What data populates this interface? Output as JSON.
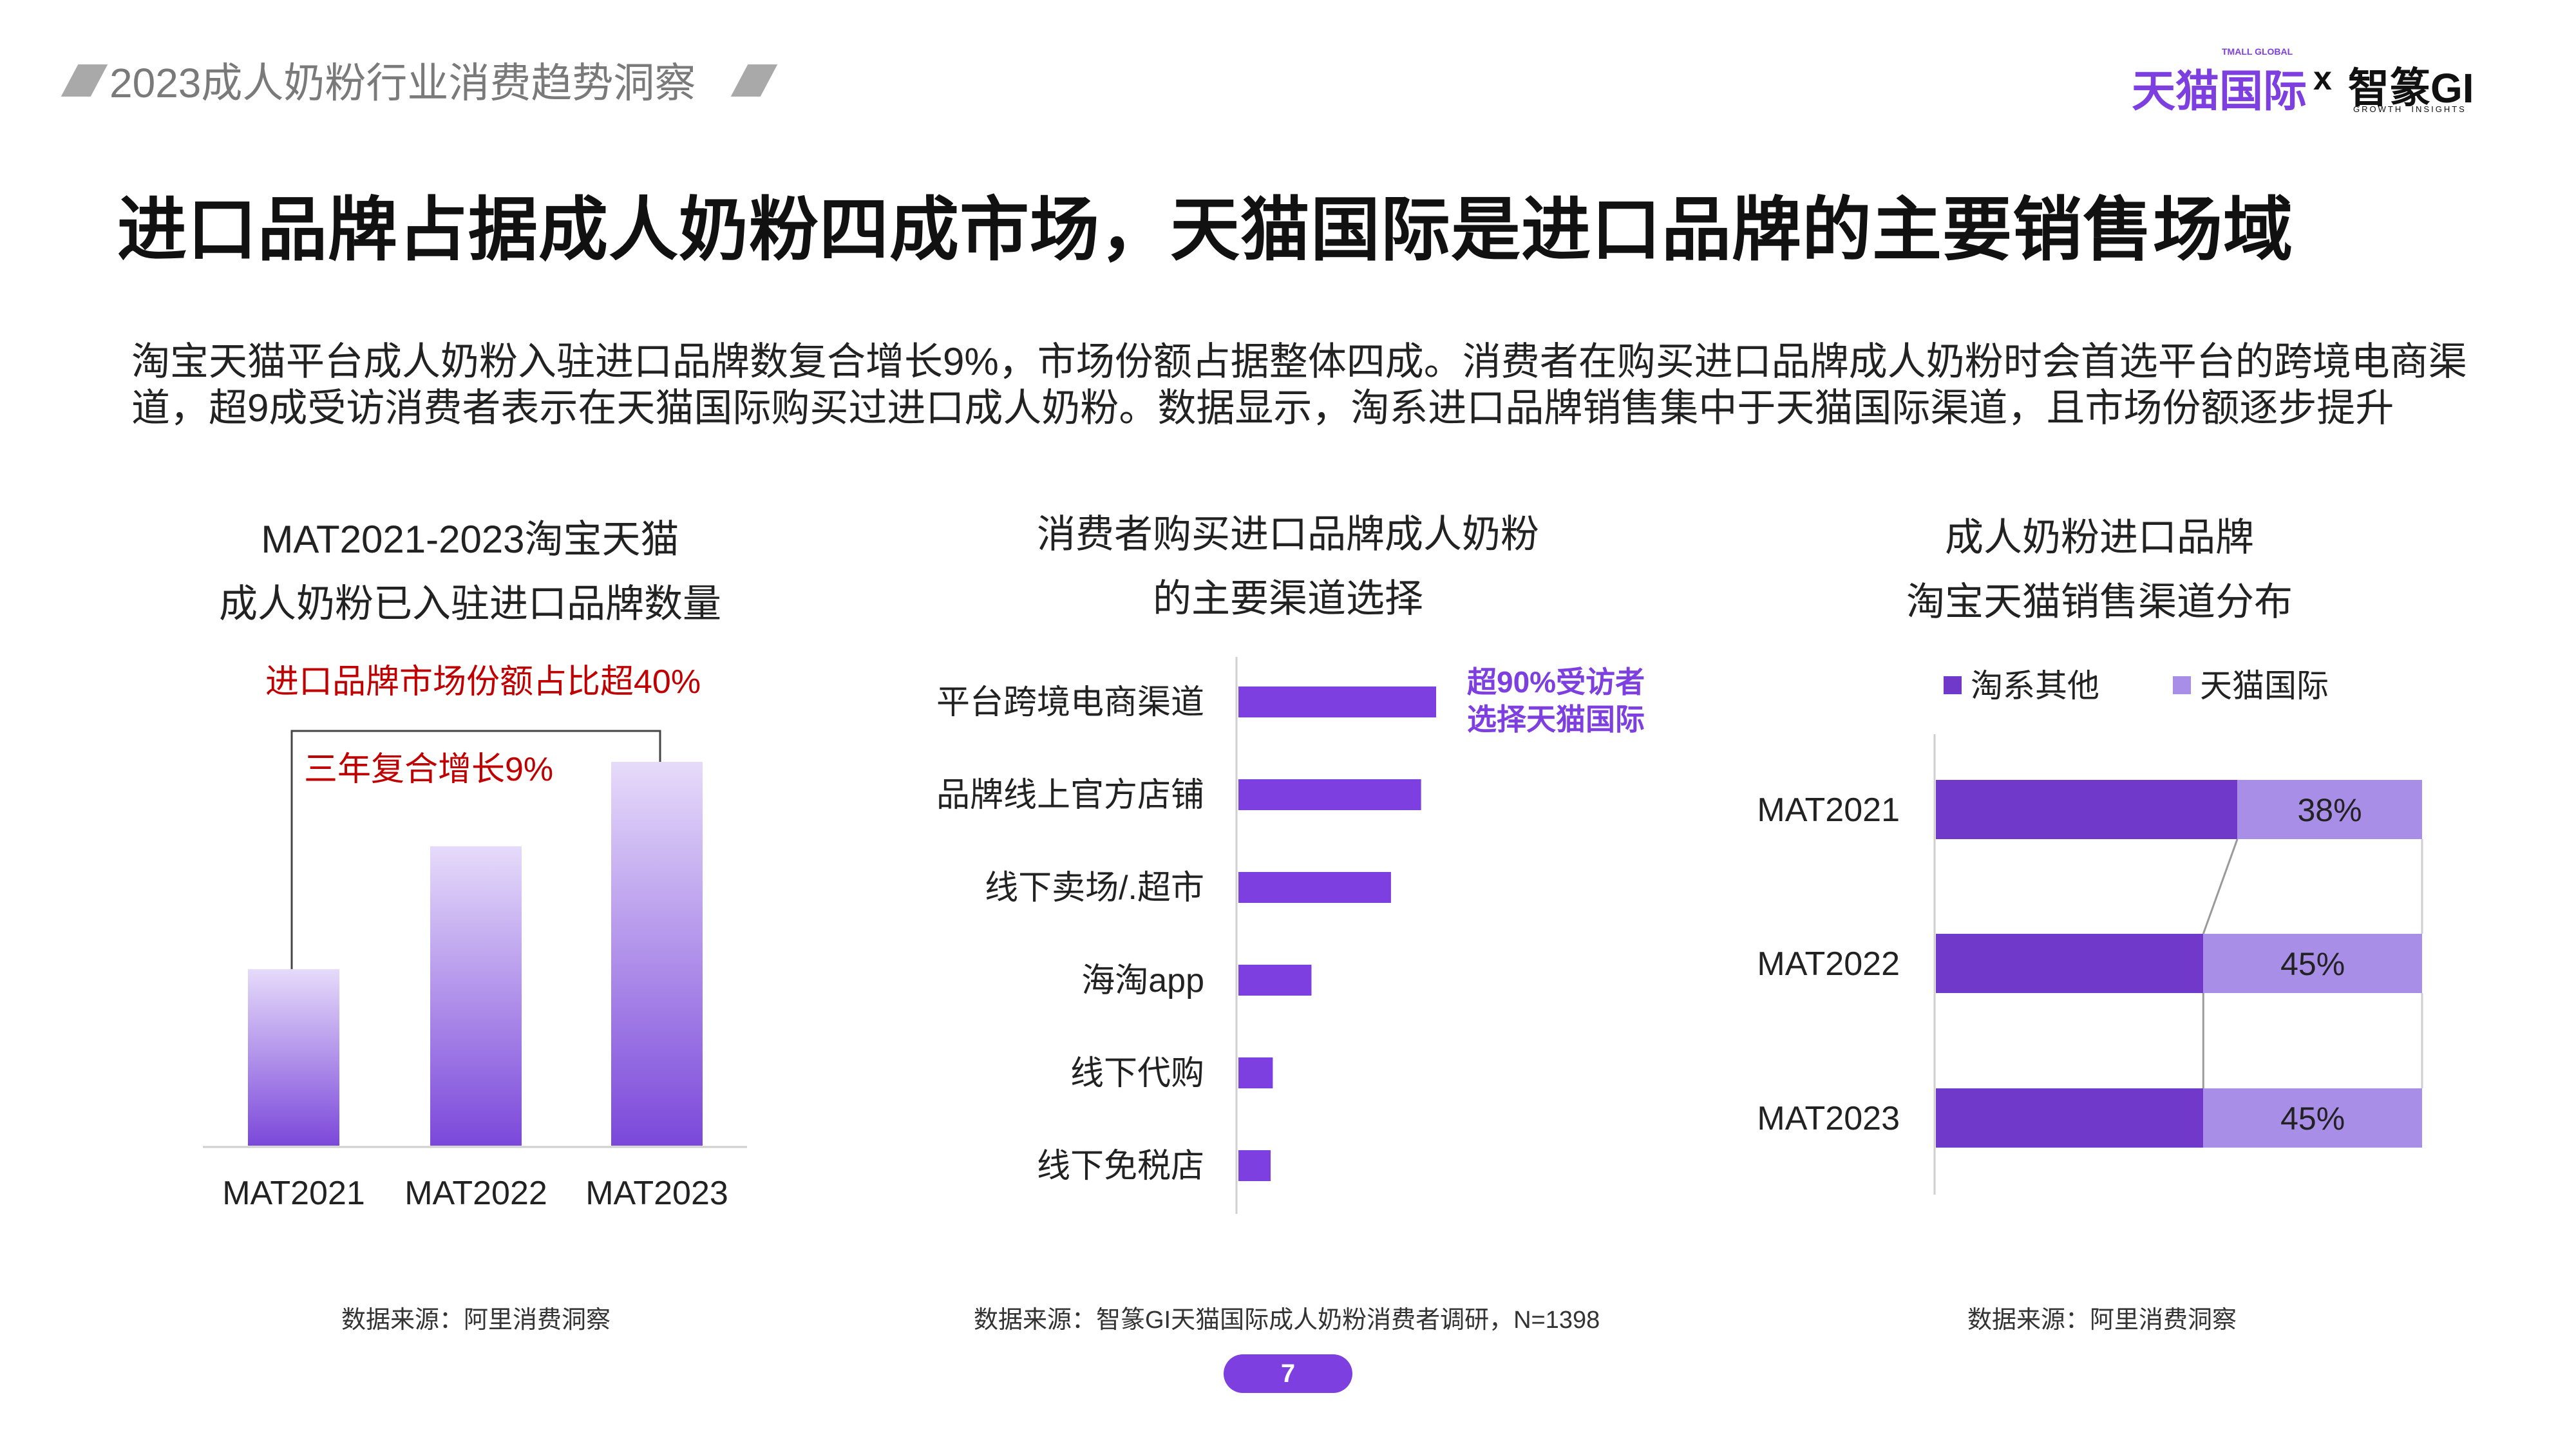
{
  "header": {
    "report_title": "2023成人奶粉行业消费趋势洞察",
    "logo_tmall": "天猫国际",
    "logo_tmall_en": "TMALL GLOBAL",
    "logo_x": "x",
    "logo_partner": "智篆GI",
    "logo_partner_en": "GROWTH  INSIGHTS"
  },
  "headline": "进口品牌占据成人奶粉四成市场，天猫国际是进口品牌的主要销售场域",
  "summary": "淘宝天猫平台成人奶粉入驻进口品牌数复合增长9%，市场份额占据整体四成。消费者在购买进口品牌成人奶粉时会首选平台的跨境电商渠道，超9成受访消费者表示在天猫国际购买过进口成人奶粉。数据显示，淘系进口品牌销售集中于天猫国际渠道，且市场份额逐步提升",
  "left_panel": {
    "title_line1": "MAT2021-2023淘宝天猫",
    "title_line2": "成人奶粉已入驻进口品牌数量",
    "note_share": "进口品牌市场份额占比超40%",
    "note_growth": "三年复合增长9%",
    "source": "数据来源：阿里消费洞察"
  },
  "middle_panel": {
    "title_line1": "消费者购买进口品牌成人奶粉",
    "title_line2": "的主要渠道选择",
    "callout_line1": "超90%受访者",
    "callout_line2": "选择天猫国际",
    "source": "数据来源：智篆GI天猫国际成人奶粉消费者调研，N=1398"
  },
  "right_panel": {
    "title_line1": "成人奶粉进口品牌",
    "title_line2": "淘宝天猫销售渠道分布",
    "source": "数据来源：阿里消费洞察"
  },
  "page_number": "7",
  "colors": {
    "purple_dark": "#7139c9",
    "purple_light": "#a98ee8",
    "purple_accent": "#7d3fe0",
    "red": "#c00000"
  },
  "chart_data": [
    {
      "type": "bar",
      "categories": [
        "MAT2021",
        "MAT2022",
        "MAT2023"
      ],
      "values": [
        0.46,
        0.78,
        1.0
      ],
      "note": "三年复合增长9%",
      "ylim": [
        0,
        1
      ]
    },
    {
      "type": "bar",
      "orientation": "horizontal",
      "categories": [
        "平台跨境电商渠道",
        "品牌线上官方店铺",
        "线下卖场/.超市",
        "海淘app",
        "线下代购",
        "线下免税店"
      ],
      "values": [
        92,
        85,
        71,
        34,
        16,
        15
      ],
      "xlim": [
        0,
        100
      ]
    },
    {
      "type": "bar",
      "stacked": true,
      "orientation": "horizontal",
      "categories": [
        "MAT2021",
        "MAT2022",
        "MAT2023"
      ],
      "series": [
        {
          "name": "淘系其他",
          "values": [
            62,
            55,
            55
          ]
        },
        {
          "name": "天猫国际",
          "values": [
            38,
            45,
            45
          ]
        }
      ],
      "labels": [
        "38%",
        "45%",
        "45%"
      ],
      "legend": "top",
      "xlim": [
        0,
        100
      ]
    }
  ]
}
